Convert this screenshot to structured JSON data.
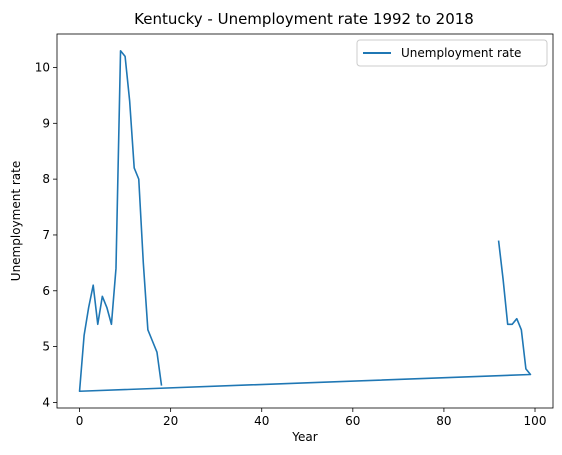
{
  "chart_data": {
    "type": "line",
    "title": "Kentucky - Unemployment rate 1992 to 2018",
    "xlabel": "Year",
    "ylabel": "Unemployment rate",
    "xlim": [
      -4.95,
      103.95
    ],
    "ylim": [
      3.9,
      10.6
    ],
    "xticks": [
      0,
      20,
      40,
      60,
      80,
      100
    ],
    "yticks": [
      4,
      5,
      6,
      7,
      8,
      9,
      10
    ],
    "grid": false,
    "legend_placement": "top-right",
    "series": [
      {
        "name": "Unemployment rate",
        "color": "#1f77b4",
        "x": [
          92,
          93,
          94,
          95,
          96,
          97,
          98,
          99,
          0,
          1,
          2,
          3,
          4,
          5,
          6,
          7,
          8,
          9,
          10,
          11,
          12,
          13,
          14,
          15,
          16,
          17,
          18
        ],
        "y": [
          6.9,
          6.2,
          5.4,
          5.4,
          5.5,
          5.3,
          4.6,
          4.5,
          4.2,
          5.2,
          5.7,
          6.1,
          5.4,
          5.9,
          5.7,
          5.4,
          6.4,
          10.3,
          10.2,
          9.4,
          8.2,
          8.0,
          6.5,
          5.3,
          5.1,
          4.9,
          4.3
        ]
      }
    ]
  }
}
